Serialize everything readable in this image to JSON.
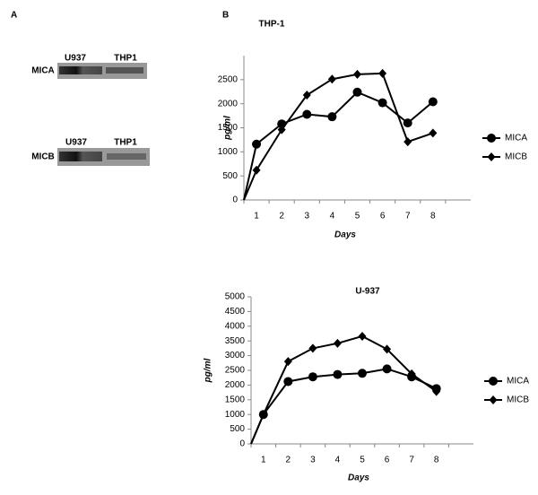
{
  "panel_a": "A",
  "panel_b": "B",
  "blots": [
    {
      "protein": "MICA",
      "lanes": [
        "U937",
        "THP1"
      ]
    },
    {
      "protein": "MICB",
      "lanes": [
        "U937",
        "THP1"
      ]
    }
  ],
  "chart_data": [
    {
      "type": "line",
      "title": "THP-1",
      "x_label": "Days",
      "y_label": "pg/ml",
      "categories": [
        null,
        "1",
        "2",
        "3",
        "4",
        "5",
        "6",
        "7",
        "8"
      ],
      "series": [
        {
          "name": "MICA",
          "color": "#000000",
          "marker": "circle",
          "values": [
            0,
            1160,
            1580,
            1780,
            1730,
            2240,
            2020,
            1600,
            2040
          ]
        },
        {
          "name": "MICB",
          "color": "#000000",
          "marker": "diamond",
          "values": [
            0,
            620,
            1460,
            2180,
            2510,
            2610,
            2630,
            1210,
            1390
          ]
        }
      ],
      "ylim": [
        0,
        3000
      ],
      "yticks": [
        0,
        500,
        1000,
        1500,
        2000,
        2500
      ],
      "grid": false,
      "legend": "right"
    },
    {
      "type": "line",
      "title": "U-937",
      "x_label": "Days",
      "y_label": "pg/ml",
      "categories": [
        null,
        "1",
        "2",
        "3",
        "4",
        "5",
        "6",
        "7",
        "8"
      ],
      "series": [
        {
          "name": "MICA",
          "color": "#000000",
          "marker": "circle",
          "values": [
            0,
            1000,
            2120,
            2280,
            2360,
            2400,
            2550,
            2280,
            1880
          ]
        },
        {
          "name": "MICB",
          "color": "#000000",
          "marker": "diamond",
          "values": [
            0,
            1000,
            2800,
            3250,
            3420,
            3660,
            3220,
            2380,
            1780
          ]
        }
      ],
      "ylim": [
        0,
        5000
      ],
      "yticks": [
        0,
        500,
        1000,
        1500,
        2000,
        2500,
        3000,
        3500,
        4000,
        4500,
        5000
      ],
      "grid": false,
      "legend": "right"
    }
  ]
}
